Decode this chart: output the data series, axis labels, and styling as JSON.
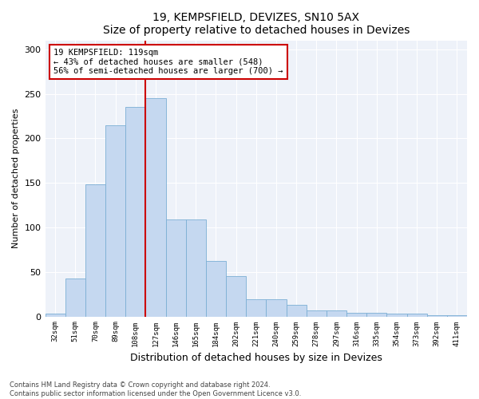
{
  "title": "19, KEMPSFIELD, DEVIZES, SN10 5AX",
  "subtitle": "Size of property relative to detached houses in Devizes",
  "xlabel": "Distribution of detached houses by size in Devizes",
  "ylabel": "Number of detached properties",
  "categories": [
    "32sqm",
    "51sqm",
    "70sqm",
    "89sqm",
    "108sqm",
    "127sqm",
    "146sqm",
    "165sqm",
    "184sqm",
    "202sqm",
    "221sqm",
    "240sqm",
    "259sqm",
    "278sqm",
    "297sqm",
    "316sqm",
    "335sqm",
    "354sqm",
    "373sqm",
    "392sqm",
    "411sqm"
  ],
  "values": [
    3,
    43,
    148,
    215,
    235,
    245,
    109,
    109,
    62,
    45,
    19,
    19,
    13,
    7,
    7,
    4,
    4,
    3,
    3,
    1,
    1
  ],
  "bar_color": "#c5d8f0",
  "bar_edge_color": "#7bafd4",
  "vline_color": "#cc0000",
  "annotation_text": "19 KEMPSFIELD: 119sqm\n← 43% of detached houses are smaller (548)\n56% of semi-detached houses are larger (700) →",
  "annotation_box_color": "#ffffff",
  "annotation_box_edge": "#cc0000",
  "ylim": [
    0,
    310
  ],
  "yticks": [
    0,
    50,
    100,
    150,
    200,
    250,
    300
  ],
  "background_color": "#eef2f9",
  "footer_line1": "Contains HM Land Registry data © Crown copyright and database right 2024.",
  "footer_line2": "Contains public sector information licensed under the Open Government Licence v3.0."
}
